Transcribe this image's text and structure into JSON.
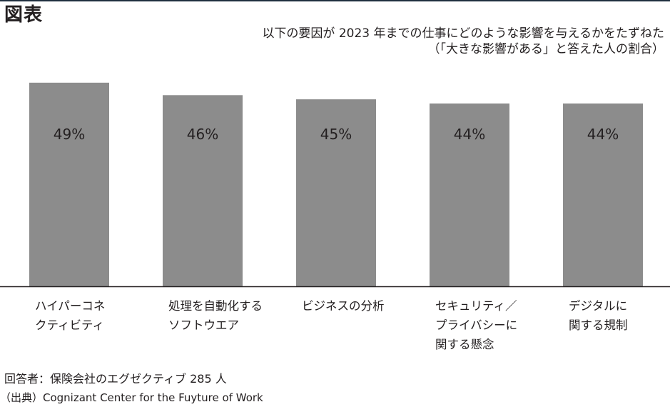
{
  "header": {
    "figure_label": "図表",
    "subtitle_line1": "以下の要因が 2023 年までの仕事にどのような影響を与えるかをたずねた",
    "subtitle_line2": "（「大きな影響がある」と答えた人の割合）"
  },
  "colors": {
    "bar": "#8c8c8c",
    "axis": "#231f20",
    "top_rule": "#1f2f3f",
    "text": "#231f20"
  },
  "chart_data": {
    "type": "bar",
    "categories": [
      "ハイパーコネ\nクティビティ",
      "処理を自動化する\nソフトウエア",
      "ビジネスの分析",
      "セキュリティ／\nプライバシーに\n関する懸念",
      "デジタルに\n関する規制"
    ],
    "values": [
      49,
      46,
      45,
      44,
      44
    ],
    "value_labels": [
      "49%",
      "46%",
      "45%",
      "44%",
      "44%"
    ],
    "ylim": [
      0,
      50
    ],
    "grid": false,
    "legend": "none"
  },
  "footer": {
    "respondents": "回答者：保険会社のエグゼクティブ 285 人",
    "source": "（出典）Cognizant Center for the Fuyture of Work"
  }
}
